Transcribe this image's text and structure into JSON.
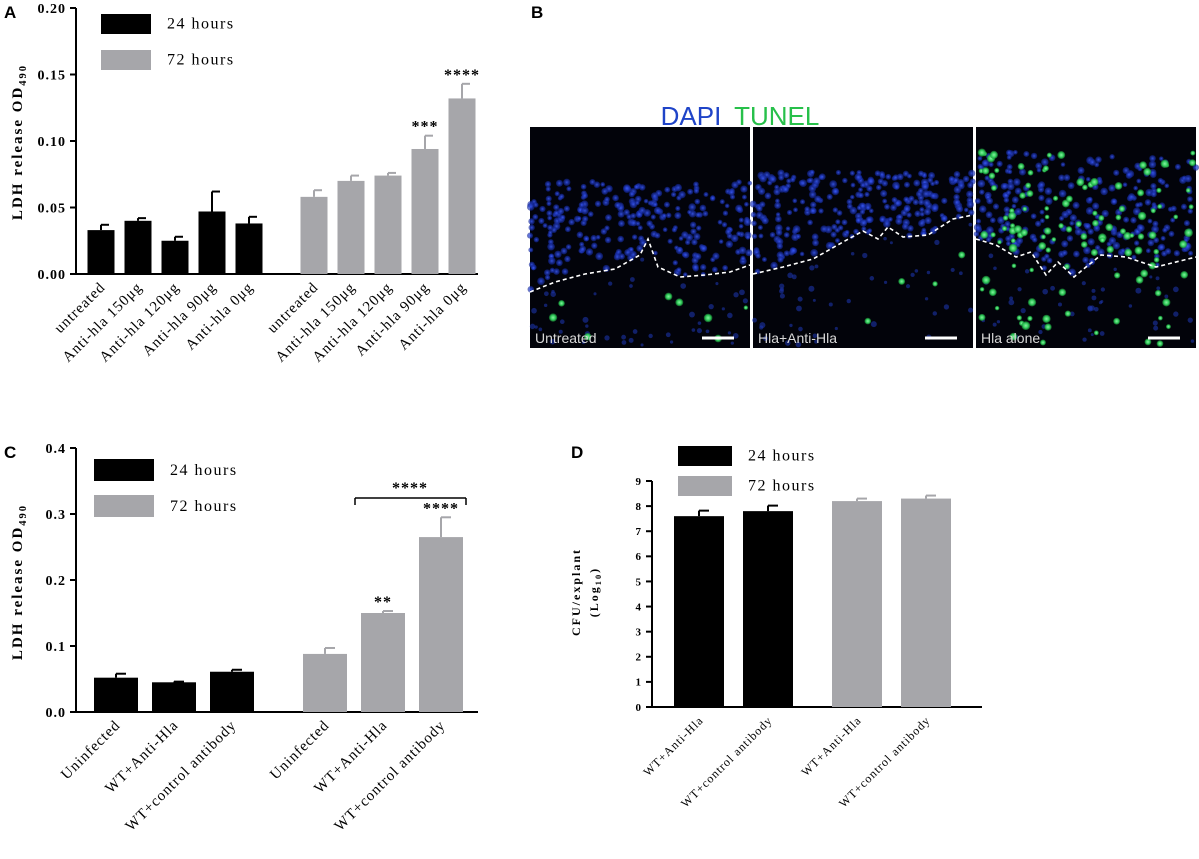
{
  "colors": {
    "black_bar": "#000000",
    "gray_bar": "#a6a6aa",
    "dapi": "#1f44c8",
    "tunel": "#27c04a"
  },
  "panels": {
    "A": {
      "letter": "A"
    },
    "B": {
      "letter": "B"
    },
    "C": {
      "letter": "C"
    },
    "D": {
      "letter": "D"
    }
  },
  "micrograph": {
    "title_dapi": "DAPI",
    "title_tunel": "TUNEL",
    "images": [
      {
        "label": "Untreated"
      },
      {
        "label": "Hla+Anti-Hla"
      },
      {
        "label": "Hla alone"
      }
    ]
  },
  "chart_data": [
    {
      "id": "A",
      "type": "bar",
      "ylabel": "LDH release OD490",
      "ylabel_main": "LDH release OD",
      "ylabel_sub": "490",
      "ylim": [
        0,
        0.2
      ],
      "yticks": [
        "0.00",
        "0.05",
        "0.10",
        "0.15",
        "0.20"
      ],
      "ytick_values": [
        0,
        0.05,
        0.1,
        0.15,
        0.2
      ],
      "legend": [
        "24 hours",
        "72 hours"
      ],
      "groups": [
        {
          "series": "24 hours",
          "categories": [
            "untreated",
            "Anti-hla 150μg",
            "Anti-hla 120μg",
            "Anti-hla 90μg",
            "Anti-hla 0μg"
          ],
          "values": [
            0.033,
            0.04,
            0.025,
            0.047,
            0.038
          ],
          "errors": [
            0.004,
            0.002,
            0.003,
            0.015,
            0.005
          ],
          "annotations": [
            "",
            "",
            "",
            "",
            ""
          ]
        },
        {
          "series": "72 hours",
          "categories": [
            "untreated",
            "Anti-hla 150μg",
            "Anti-hla 120μg",
            "Anti-hla 90μg",
            "Anti-hla 0μg"
          ],
          "values": [
            0.058,
            0.07,
            0.074,
            0.094,
            0.132
          ],
          "errors": [
            0.005,
            0.004,
            0.002,
            0.01,
            0.011
          ],
          "annotations": [
            "",
            "",
            "",
            "***",
            "****"
          ]
        }
      ]
    },
    {
      "id": "C",
      "type": "bar",
      "ylabel": "LDH release OD490",
      "ylabel_main": "LDH release OD",
      "ylabel_sub": "490",
      "ylim": [
        0,
        0.4
      ],
      "yticks": [
        "0.0",
        "0.1",
        "0.2",
        "0.3",
        "0.4"
      ],
      "ytick_values": [
        0,
        0.1,
        0.2,
        0.3,
        0.4
      ],
      "legend": [
        "24 hours",
        "72 hours"
      ],
      "bracket": {
        "label": "****"
      },
      "groups": [
        {
          "series": "24 hours",
          "categories": [
            "Uninfected",
            "WT+Anti-Hla",
            "WT+control antibody"
          ],
          "values": [
            0.052,
            0.045,
            0.061
          ],
          "errors": [
            0.006,
            0.001,
            0.003
          ],
          "annotations": [
            "",
            "",
            ""
          ]
        },
        {
          "series": "72 hours",
          "categories": [
            "Uninfected",
            "WT+Anti-Hla",
            "WT+control antibody"
          ],
          "values": [
            0.088,
            0.15,
            0.265
          ],
          "errors": [
            0.009,
            0.003,
            0.03
          ],
          "annotations": [
            "",
            "**",
            "****"
          ]
        }
      ]
    },
    {
      "id": "D",
      "type": "bar",
      "ylabel": "CFU/explant (Log10)",
      "ylabel_line1": "CFU/explant",
      "ylabel_line2_main": "(Log",
      "ylabel_line2_sub": "10",
      "ylabel_line2_end": ")",
      "ylim": [
        0,
        9
      ],
      "yticks": [
        "0",
        "1",
        "2",
        "3",
        "4",
        "5",
        "6",
        "7",
        "8",
        "9"
      ],
      "ytick_values": [
        0,
        1,
        2,
        3,
        4,
        5,
        6,
        7,
        8,
        9
      ],
      "legend": [
        "24 hours",
        "72 hours"
      ],
      "groups": [
        {
          "series": "24 hours",
          "categories": [
            "WT+Anti-Hla",
            "WT+control antibody"
          ],
          "values": [
            7.6,
            7.8
          ],
          "errors": [
            0.22,
            0.22
          ],
          "annotations": [
            "",
            ""
          ]
        },
        {
          "series": "72 hours",
          "categories": [
            "WT+Anti-Hla",
            "WT+control antibody"
          ],
          "values": [
            8.2,
            8.3
          ],
          "errors": [
            0.1,
            0.12
          ],
          "annotations": [
            "",
            ""
          ]
        }
      ]
    }
  ]
}
